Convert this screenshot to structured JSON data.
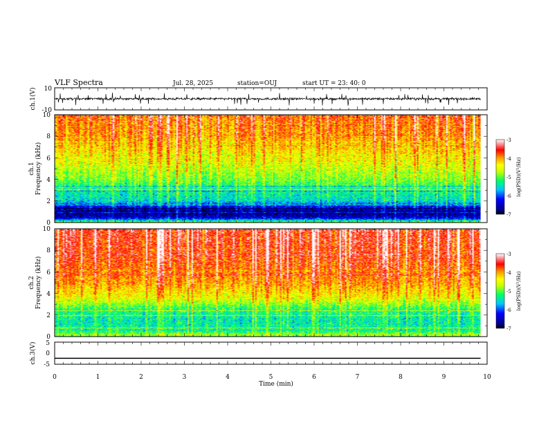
{
  "header": {
    "title": "VLF Spectra",
    "date": "Jul. 28, 2025",
    "station": "station=OUJ",
    "start": "start UT =  23: 40: 0"
  },
  "chart_data": [
    {
      "type": "line",
      "name": "ch1-waveform",
      "ylabel": "ch.1(V)",
      "ylim": [
        -10,
        10
      ],
      "yticks": [
        "10",
        "-10"
      ],
      "xlim": [
        0,
        10
      ],
      "line_color": "#000000",
      "baseline_v": 0,
      "noise_amplitude_v": 1.5,
      "spike_amplitude_v": 5,
      "end_time_min": 9.85
    },
    {
      "type": "heatmap",
      "name": "ch1-spectrogram",
      "ylabel_top": "ch.1",
      "ylabel": "Frequency (kHz)",
      "ylim": [
        0,
        10
      ],
      "yticks": [
        "0",
        "2",
        "4",
        "6",
        "8",
        "10"
      ],
      "xlim": [
        0,
        10
      ],
      "end_time_min": 9.85,
      "colorbar": {
        "label": "log(PSD)(V²/Hz)",
        "range": [
          -7,
          -3
        ],
        "ticks": [
          "-3",
          "-4",
          "-5",
          "-6",
          "-7"
        ]
      },
      "level_profile": [
        {
          "f_khz": 0.0,
          "logpsd": -4.9
        },
        {
          "f_khz": 0.4,
          "logpsd": -6.4
        },
        {
          "f_khz": 0.9,
          "logpsd": -6.8
        },
        {
          "f_khz": 1.5,
          "logpsd": -6.2
        },
        {
          "f_khz": 2.0,
          "logpsd": -5.5
        },
        {
          "f_khz": 3.0,
          "logpsd": -5.3
        },
        {
          "f_khz": 4.0,
          "logpsd": -4.9
        },
        {
          "f_khz": 6.0,
          "logpsd": -4.4
        },
        {
          "f_khz": 8.0,
          "logpsd": -4.0
        },
        {
          "f_khz": 10.0,
          "logpsd": -3.8
        }
      ]
    },
    {
      "type": "heatmap",
      "name": "ch2-spectrogram",
      "ylabel_top": "ch.2",
      "ylabel": "Frequency (kHz)",
      "ylim": [
        0,
        10
      ],
      "yticks": [
        "0",
        "2",
        "4",
        "6",
        "8",
        "10"
      ],
      "xlim": [
        0,
        10
      ],
      "end_time_min": 9.85,
      "colorbar": {
        "label": "log(PSD)(V²/Hz)",
        "range": [
          -7,
          -3
        ],
        "ticks": [
          "-3",
          "-4",
          "-5",
          "-6",
          "-7"
        ]
      },
      "level_profile": [
        {
          "f_khz": 0.0,
          "logpsd": -4.6
        },
        {
          "f_khz": 0.5,
          "logpsd": -5.3
        },
        {
          "f_khz": 1.5,
          "logpsd": -5.4
        },
        {
          "f_khz": 2.5,
          "logpsd": -5.2
        },
        {
          "f_khz": 3.5,
          "logpsd": -4.5
        },
        {
          "f_khz": 5.0,
          "logpsd": -4.0
        },
        {
          "f_khz": 7.0,
          "logpsd": -3.7
        },
        {
          "f_khz": 10.0,
          "logpsd": -3.5
        }
      ]
    },
    {
      "type": "line",
      "name": "ch3-waveform",
      "ylabel": "ch.3(V)",
      "ylim": [
        -5,
        5
      ],
      "yticks": [
        "5",
        "0",
        "-5"
      ],
      "xlim": [
        0,
        10
      ],
      "xlabel": "Time (min)",
      "xticks": [
        "0",
        "1",
        "2",
        "3",
        "4",
        "5",
        "6",
        "7",
        "8",
        "9",
        "10"
      ],
      "constant_value_v": -2.3,
      "line_color": "#000000"
    }
  ]
}
